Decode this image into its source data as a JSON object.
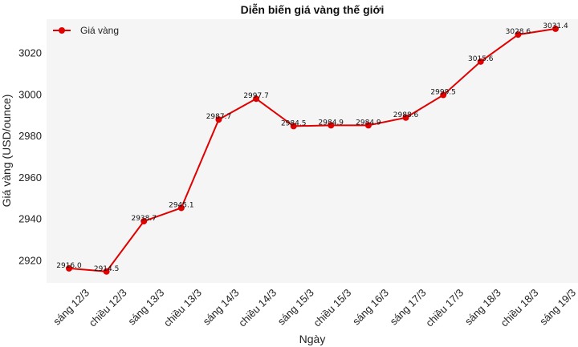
{
  "chart_data": {
    "type": "line",
    "title": "Diễn biến giá vàng thế giới",
    "xlabel": "Ngày",
    "ylabel": "Giá vàng (USD/ounce)",
    "categories": [
      "sáng 12/3",
      "chiều 12/3",
      "sáng 13/3",
      "chiều 13/3",
      "sáng 14/3",
      "chiều 14/3",
      "sáng 15/3",
      "chiều 15/3",
      "sáng 16/3",
      "sáng 17/3",
      "chiều 17/3",
      "sáng 18/3",
      "chiều 18/3",
      "sáng 19/3"
    ],
    "series": [
      {
        "name": "Giá vàng",
        "values": [
          2916.0,
          2914.5,
          2938.7,
          2945.1,
          2987.7,
          2997.7,
          2984.5,
          2984.9,
          2984.9,
          2988.6,
          2999.5,
          3015.6,
          3028.6,
          3031.4
        ],
        "labels": [
          "2916.0",
          "2914.5",
          "2938.7",
          "2945.1",
          "2987.7",
          "2997.7",
          "2984.5",
          "2984.9",
          "2984.9",
          "2988.6",
          "2999.5",
          "3015.6",
          "3028.6",
          "3031.4"
        ]
      }
    ],
    "ylim": [
      2909,
      3036
    ],
    "yticks": [
      2920,
      2940,
      2960,
      2980,
      3000,
      3020
    ],
    "grid": false,
    "legend": "top-left",
    "colors": {
      "line": "#e00000",
      "background": "#f5f5f5"
    }
  }
}
